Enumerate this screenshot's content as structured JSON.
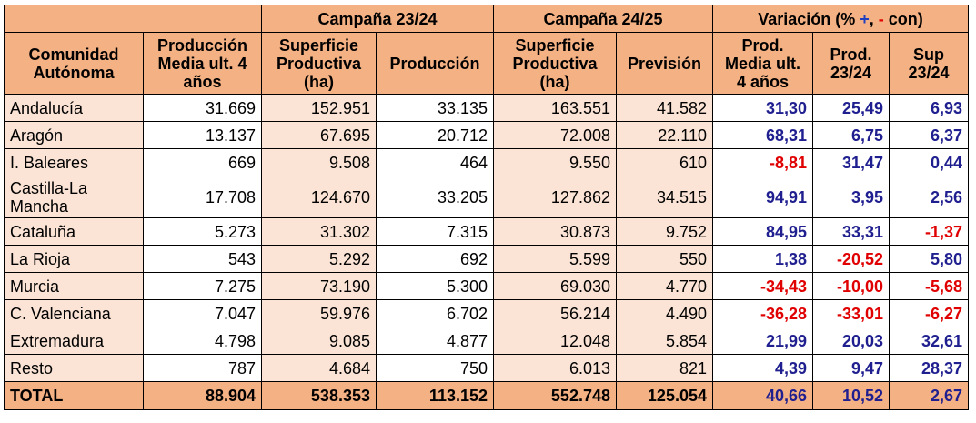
{
  "header": {
    "campaign_2324": "Campaña 23/24",
    "campaign_2425": "Campaña 24/25",
    "variation_prefix": "Variación (% ",
    "variation_plus": "+",
    "variation_sep": ", ",
    "variation_minus": "-",
    "variation_suffix": " con)",
    "columns": [
      "Comunidad Autónoma",
      "Producción Media ult. 4 años",
      "Superficie Productiva (ha)",
      "Producción",
      "Superficie Productiva (ha)",
      "Previsión",
      "Prod. Media ult. 4 años",
      "Prod. 23/24",
      "Sup 23/24"
    ]
  },
  "rows": [
    [
      "Andalucía",
      "31.669",
      "152.951",
      "33.135",
      "163.551",
      "41.582",
      "31,30",
      "25,49",
      "6,93"
    ],
    [
      "Aragón",
      "13.137",
      "67.695",
      "20.712",
      "72.008",
      "22.110",
      "68,31",
      "6,75",
      "6,37"
    ],
    [
      "I. Baleares",
      "669",
      "9.508",
      "464",
      "9.550",
      "610",
      "-8,81",
      "31,47",
      "0,44"
    ],
    [
      "Castilla-La Mancha",
      "17.708",
      "124.670",
      "33.205",
      "127.862",
      "34.515",
      "94,91",
      "3,95",
      "2,56"
    ],
    [
      "Cataluña",
      "5.273",
      "31.302",
      "7.315",
      "30.873",
      "9.752",
      "84,95",
      "33,31",
      "-1,37"
    ],
    [
      "La Rioja",
      "543",
      "5.292",
      "692",
      "5.599",
      "550",
      "1,38",
      "-20,52",
      "5,80"
    ],
    [
      "Murcia",
      "7.275",
      "73.190",
      "5.300",
      "69.030",
      "4.770",
      "-34,43",
      "-10,00",
      "-5,68"
    ],
    [
      "C. Valenciana",
      "7.047",
      "59.976",
      "6.702",
      "56.214",
      "4.490",
      "-36,28",
      "-33,01",
      "-6,27"
    ],
    [
      "Extremadura",
      "4.798",
      "9.085",
      "4.877",
      "12.048",
      "5.854",
      "21,99",
      "20,03",
      "32,61"
    ],
    [
      "Resto",
      "787",
      "4.684",
      "750",
      "6.013",
      "821",
      "4,39",
      "9,47",
      "28,37"
    ]
  ],
  "total": [
    "TOTAL",
    "88.904",
    "538.353",
    "113.152",
    "552.748",
    "125.054",
    "40,66",
    "10,52",
    "2,67"
  ],
  "colors": {
    "header_bg": "#f4b183",
    "light_bg": "#fbe4d5",
    "positive": "#1f1f8f",
    "negative": "#e00000"
  }
}
